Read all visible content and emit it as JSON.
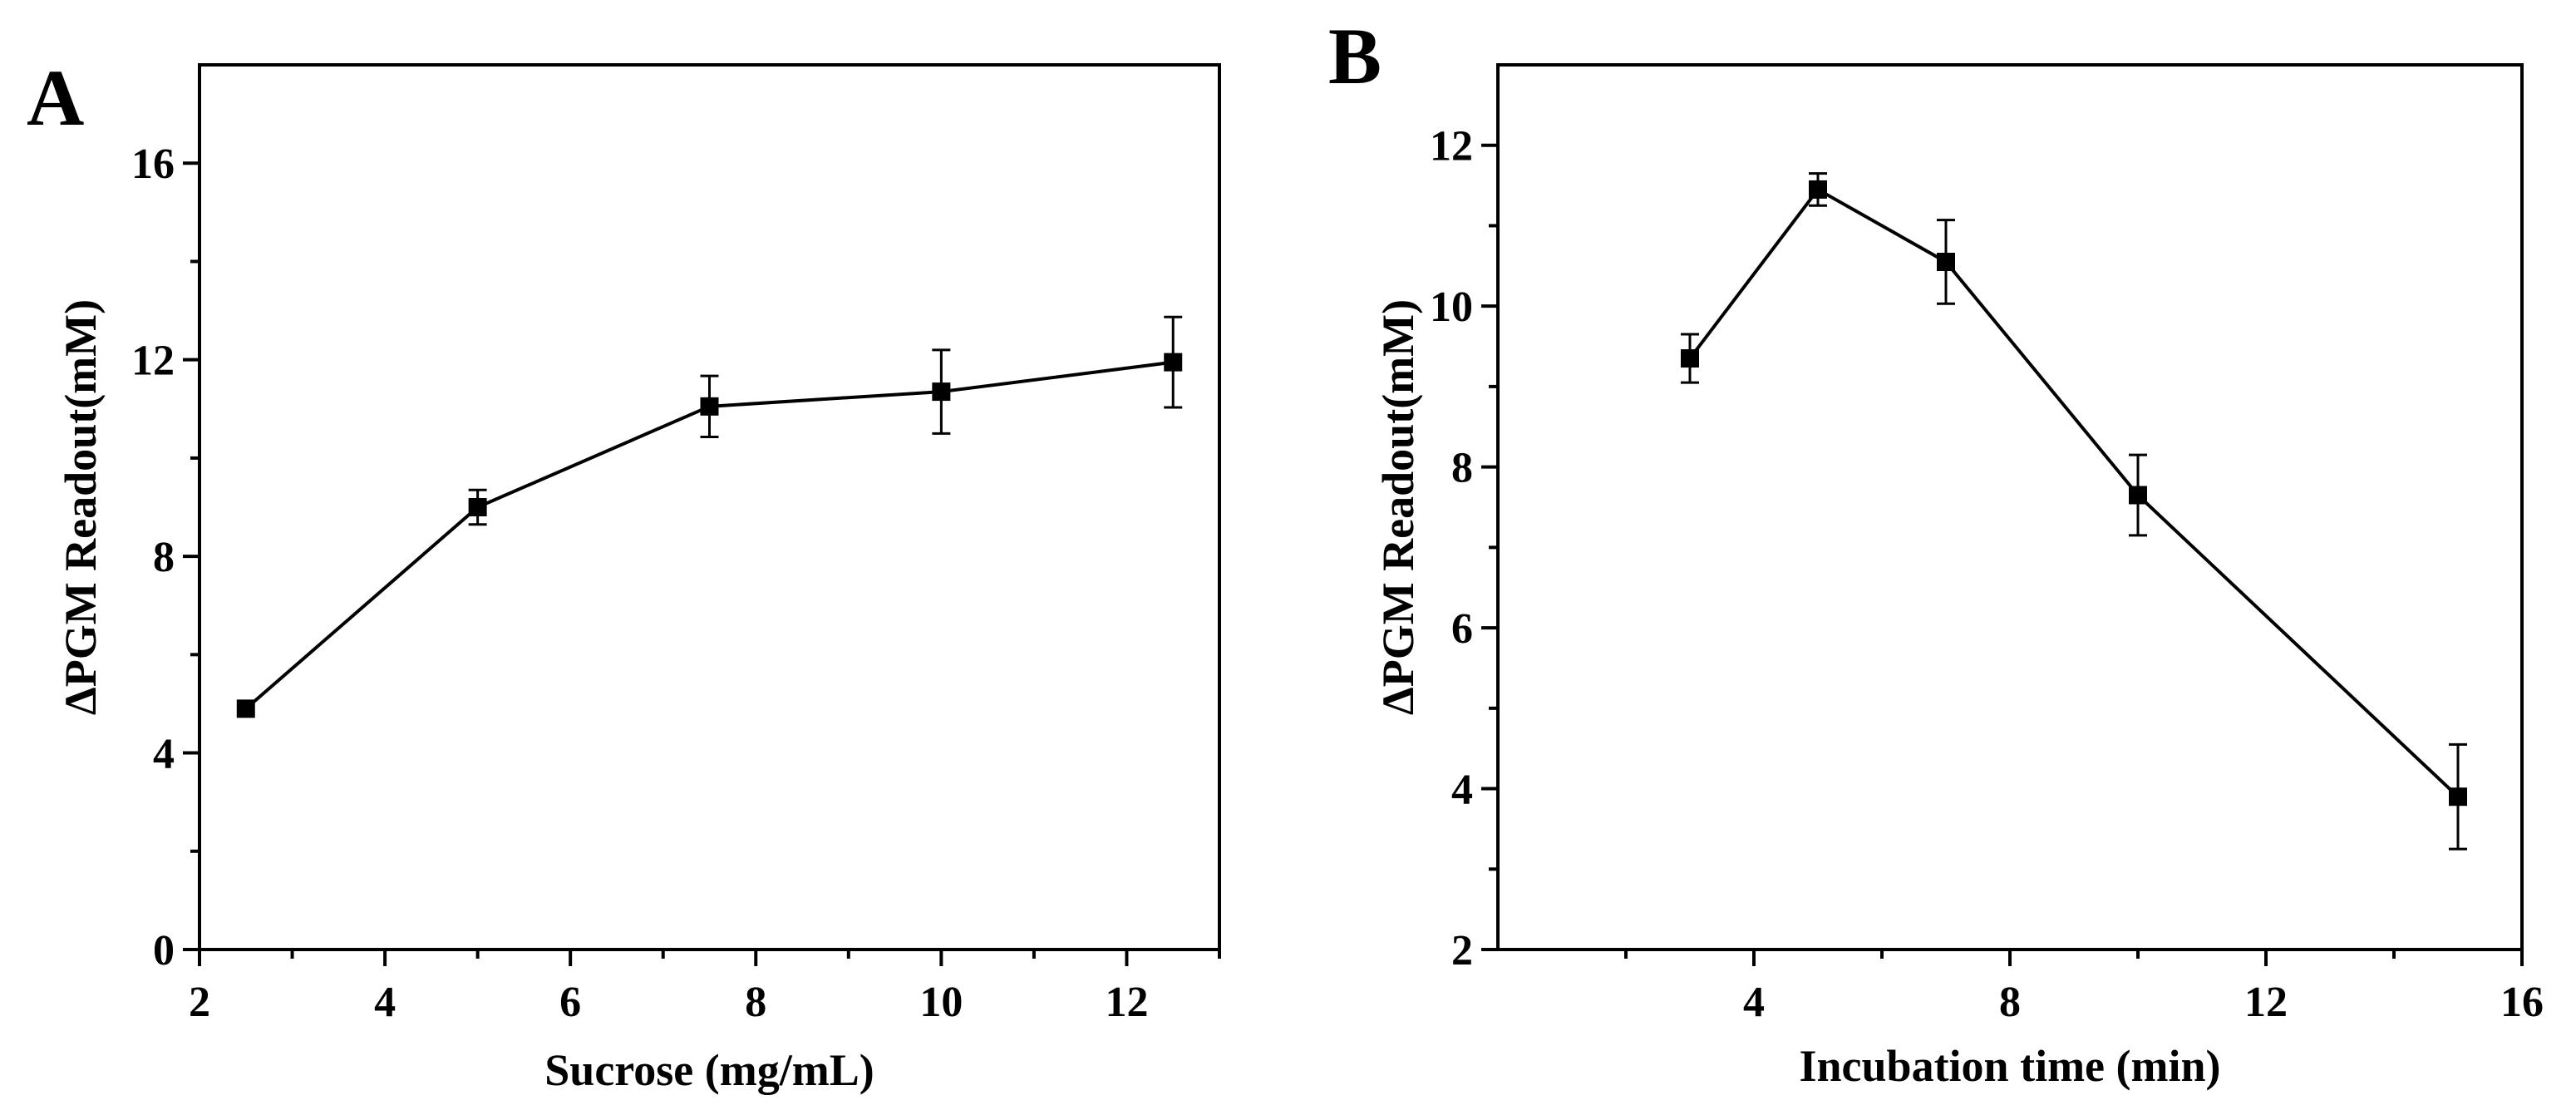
{
  "chart_data": [
    {
      "panel_label": "A",
      "type": "line",
      "title": "",
      "xlabel": "Sucrose (mg/mL)",
      "ylabel": "ΔPGM Readout(mM)",
      "xlim": [
        2,
        13
      ],
      "ylim": [
        0,
        18
      ],
      "x_major_ticks": [
        2,
        4,
        6,
        8,
        10,
        12
      ],
      "x_minor_ticks": [
        3,
        5,
        7,
        9,
        11,
        13
      ],
      "y_major_ticks": [
        0,
        4,
        8,
        12,
        16
      ],
      "y_minor_ticks": [
        2,
        6,
        10,
        14
      ],
      "marker": "square",
      "series": [
        {
          "name": "PGM readout",
          "x": [
            2.5,
            5,
            7.5,
            10,
            12.5
          ],
          "y": [
            4.9,
            9.0,
            11.05,
            11.35,
            11.95
          ],
          "err": [
            0.05,
            0.35,
            0.62,
            0.85,
            0.92
          ]
        }
      ]
    },
    {
      "panel_label": "B",
      "type": "line",
      "title": "",
      "xlabel": "Incubation time (min)",
      "ylabel": "ΔPGM Readout(mM)",
      "xlim": [
        0,
        16
      ],
      "ylim": [
        2,
        13
      ],
      "x_major_ticks": [
        4,
        8,
        12,
        16
      ],
      "x_minor_ticks": [
        2,
        6,
        10,
        14
      ],
      "y_major_ticks": [
        2,
        4,
        6,
        8,
        10,
        12
      ],
      "y_minor_ticks": [
        3,
        5,
        7,
        9,
        11
      ],
      "marker": "square",
      "series": [
        {
          "name": "PGM readout",
          "x": [
            3,
            5,
            7,
            10,
            15
          ],
          "y": [
            9.35,
            11.45,
            10.55,
            7.65,
            3.9
          ],
          "err": [
            0.3,
            0.2,
            0.52,
            0.5,
            0.65
          ]
        }
      ]
    }
  ]
}
